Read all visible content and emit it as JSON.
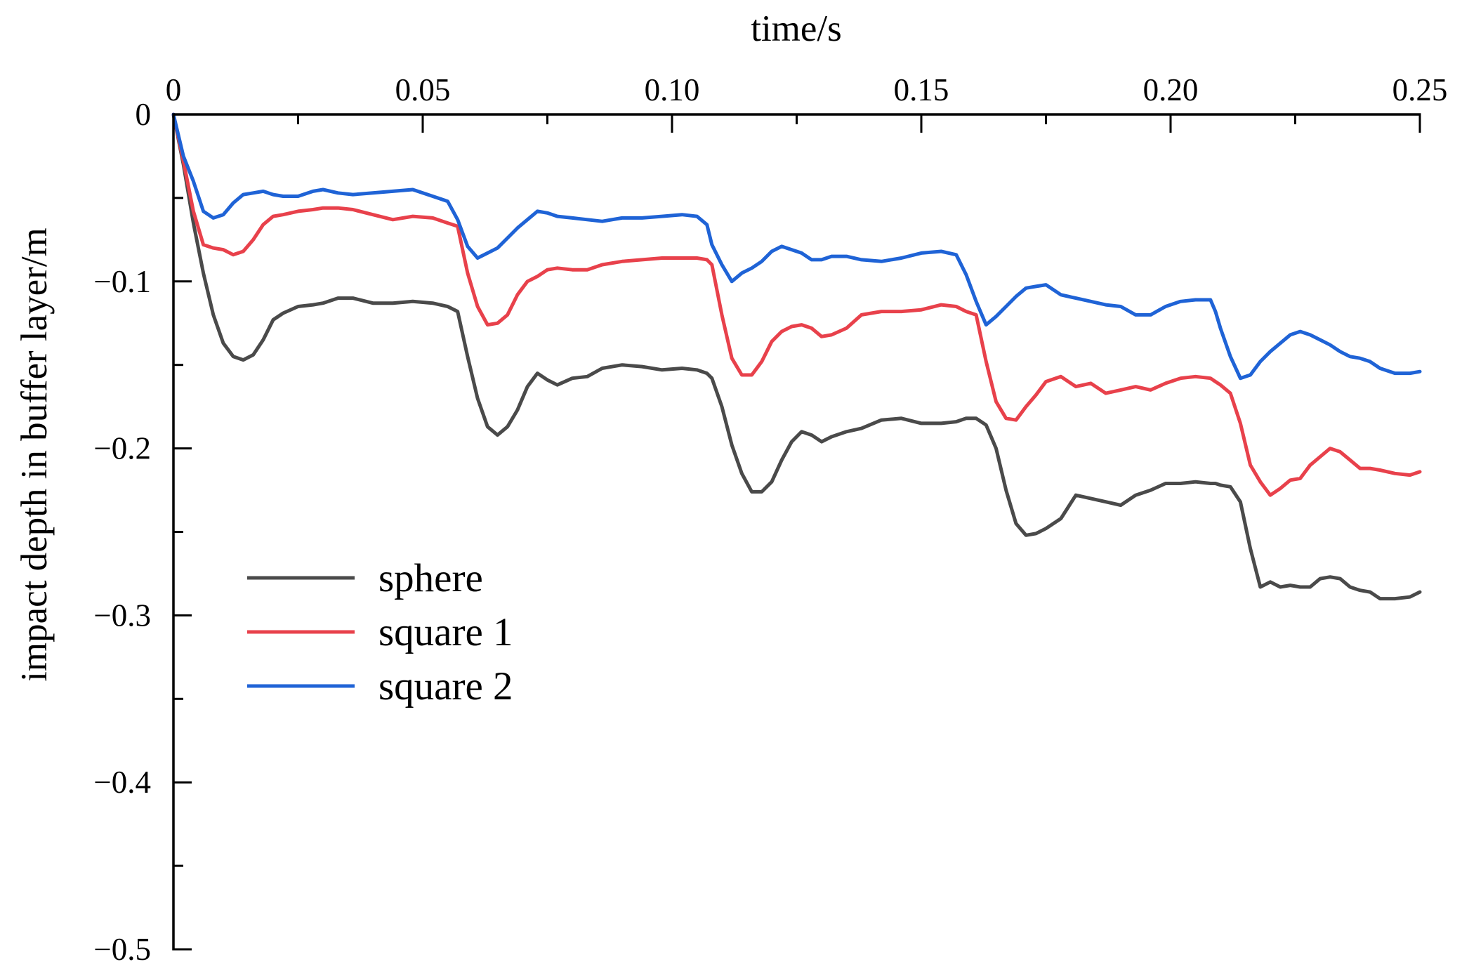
{
  "chart_data": {
    "type": "line",
    "title": "",
    "xlabel": "time/s",
    "ylabel": "impact depth in buffer layer/m",
    "x_axis_position": "top",
    "xlim": [
      0,
      0.25
    ],
    "ylim": [
      -0.5,
      0
    ],
    "x_ticks": [
      {
        "value": 0,
        "label": "0"
      },
      {
        "value": 0.05,
        "label": "0.05"
      },
      {
        "value": 0.1,
        "label": "0.10"
      },
      {
        "value": 0.15,
        "label": "0.15"
      },
      {
        "value": 0.2,
        "label": "0.20"
      },
      {
        "value": 0.25,
        "label": "0.25"
      }
    ],
    "x_minor_ticks": [
      0.025,
      0.075,
      0.125,
      0.175,
      0.225
    ],
    "y_ticks": [
      {
        "value": 0,
        "label": "0"
      },
      {
        "value": -0.1,
        "label": "−0.1"
      },
      {
        "value": -0.2,
        "label": "−0.2"
      },
      {
        "value": -0.3,
        "label": "−0.3"
      },
      {
        "value": -0.4,
        "label": "−0.4"
      },
      {
        "value": -0.5,
        "label": "−0.5"
      }
    ],
    "y_minor_ticks": [
      -0.05,
      -0.15,
      -0.25,
      -0.35,
      -0.45
    ],
    "grid": false,
    "legend_position": "lower-left",
    "series": [
      {
        "name": "sphere",
        "color": "#4a4a4a",
        "x": [
          0,
          0.002,
          0.004,
          0.006,
          0.008,
          0.01,
          0.012,
          0.014,
          0.016,
          0.018,
          0.02,
          0.022,
          0.025,
          0.028,
          0.03,
          0.033,
          0.036,
          0.04,
          0.044,
          0.048,
          0.052,
          0.055,
          0.057,
          0.059,
          0.061,
          0.063,
          0.065,
          0.067,
          0.069,
          0.071,
          0.073,
          0.075,
          0.077,
          0.08,
          0.083,
          0.086,
          0.09,
          0.094,
          0.098,
          0.102,
          0.105,
          0.107,
          0.108,
          0.11,
          0.112,
          0.114,
          0.116,
          0.118,
          0.12,
          0.122,
          0.124,
          0.126,
          0.128,
          0.13,
          0.132,
          0.135,
          0.138,
          0.142,
          0.146,
          0.15,
          0.154,
          0.157,
          0.159,
          0.161,
          0.163,
          0.165,
          0.167,
          0.169,
          0.171,
          0.173,
          0.175,
          0.178,
          0.181,
          0.184,
          0.187,
          0.19,
          0.193,
          0.196,
          0.199,
          0.202,
          0.205,
          0.208,
          0.209,
          0.21,
          0.212,
          0.214,
          0.216,
          0.218,
          0.22,
          0.222,
          0.224,
          0.226,
          0.228,
          0.23,
          0.232,
          0.234,
          0.236,
          0.238,
          0.24,
          0.242,
          0.245,
          0.248,
          0.25
        ],
        "values": [
          0,
          -0.03,
          -0.065,
          -0.095,
          -0.12,
          -0.137,
          -0.145,
          -0.147,
          -0.144,
          -0.135,
          -0.123,
          -0.119,
          -0.115,
          -0.114,
          -0.113,
          -0.11,
          -0.11,
          -0.113,
          -0.113,
          -0.112,
          -0.113,
          -0.115,
          -0.118,
          -0.145,
          -0.17,
          -0.187,
          -0.192,
          -0.187,
          -0.177,
          -0.163,
          -0.155,
          -0.159,
          -0.162,
          -0.158,
          -0.157,
          -0.152,
          -0.15,
          -0.151,
          -0.153,
          -0.152,
          -0.153,
          -0.155,
          -0.158,
          -0.175,
          -0.198,
          -0.215,
          -0.226,
          -0.226,
          -0.22,
          -0.207,
          -0.196,
          -0.19,
          -0.192,
          -0.196,
          -0.193,
          -0.19,
          -0.188,
          -0.183,
          -0.182,
          -0.185,
          -0.185,
          -0.184,
          -0.182,
          -0.182,
          -0.186,
          -0.2,
          -0.225,
          -0.245,
          -0.252,
          -0.251,
          -0.248,
          -0.242,
          -0.228,
          -0.23,
          -0.232,
          -0.234,
          -0.228,
          -0.225,
          -0.221,
          -0.221,
          -0.22,
          -0.221,
          -0.221,
          -0.222,
          -0.223,
          -0.232,
          -0.26,
          -0.283,
          -0.28,
          -0.283,
          -0.282,
          -0.283,
          -0.283,
          -0.278,
          -0.277,
          -0.278,
          -0.283,
          -0.285,
          -0.286,
          -0.29,
          -0.29,
          -0.289,
          -0.286
        ]
      },
      {
        "name": "square 1",
        "color": "#e8414b",
        "x": [
          0,
          0.002,
          0.004,
          0.006,
          0.008,
          0.01,
          0.012,
          0.014,
          0.016,
          0.018,
          0.02,
          0.022,
          0.025,
          0.028,
          0.03,
          0.033,
          0.036,
          0.04,
          0.044,
          0.048,
          0.052,
          0.055,
          0.057,
          0.059,
          0.061,
          0.063,
          0.065,
          0.067,
          0.069,
          0.071,
          0.073,
          0.075,
          0.077,
          0.08,
          0.083,
          0.086,
          0.09,
          0.094,
          0.098,
          0.102,
          0.105,
          0.107,
          0.108,
          0.11,
          0.112,
          0.114,
          0.116,
          0.118,
          0.12,
          0.122,
          0.124,
          0.126,
          0.128,
          0.13,
          0.132,
          0.135,
          0.138,
          0.142,
          0.146,
          0.15,
          0.154,
          0.157,
          0.159,
          0.161,
          0.163,
          0.165,
          0.167,
          0.169,
          0.171,
          0.173,
          0.175,
          0.178,
          0.181,
          0.184,
          0.187,
          0.19,
          0.193,
          0.196,
          0.199,
          0.202,
          0.205,
          0.208,
          0.209,
          0.21,
          0.212,
          0.214,
          0.216,
          0.218,
          0.22,
          0.222,
          0.224,
          0.226,
          0.228,
          0.23,
          0.232,
          0.234,
          0.236,
          0.238,
          0.24,
          0.242,
          0.245,
          0.248,
          0.25
        ],
        "values": [
          0,
          -0.028,
          -0.058,
          -0.078,
          -0.08,
          -0.081,
          -0.084,
          -0.082,
          -0.075,
          -0.066,
          -0.061,
          -0.06,
          -0.058,
          -0.057,
          -0.056,
          -0.056,
          -0.057,
          -0.06,
          -0.063,
          -0.061,
          -0.062,
          -0.065,
          -0.067,
          -0.095,
          -0.115,
          -0.126,
          -0.125,
          -0.12,
          -0.108,
          -0.1,
          -0.097,
          -0.093,
          -0.092,
          -0.093,
          -0.093,
          -0.09,
          -0.088,
          -0.087,
          -0.086,
          -0.086,
          -0.086,
          -0.087,
          -0.09,
          -0.12,
          -0.146,
          -0.156,
          -0.156,
          -0.148,
          -0.136,
          -0.13,
          -0.127,
          -0.126,
          -0.128,
          -0.133,
          -0.132,
          -0.128,
          -0.12,
          -0.118,
          -0.118,
          -0.117,
          -0.114,
          -0.115,
          -0.118,
          -0.12,
          -0.148,
          -0.172,
          -0.182,
          -0.183,
          -0.175,
          -0.168,
          -0.16,
          -0.157,
          -0.163,
          -0.161,
          -0.167,
          -0.165,
          -0.163,
          -0.165,
          -0.161,
          -0.158,
          -0.157,
          -0.158,
          -0.16,
          -0.162,
          -0.167,
          -0.185,
          -0.21,
          -0.22,
          -0.228,
          -0.224,
          -0.219,
          -0.218,
          -0.21,
          -0.205,
          -0.2,
          -0.202,
          -0.207,
          -0.212,
          -0.212,
          -0.213,
          -0.215,
          -0.216,
          -0.214
        ]
      },
      {
        "name": "square 2",
        "color": "#1f63d6",
        "x": [
          0,
          0.002,
          0.004,
          0.006,
          0.008,
          0.01,
          0.012,
          0.014,
          0.016,
          0.018,
          0.02,
          0.022,
          0.025,
          0.028,
          0.03,
          0.033,
          0.036,
          0.04,
          0.044,
          0.048,
          0.052,
          0.055,
          0.057,
          0.059,
          0.061,
          0.063,
          0.065,
          0.067,
          0.069,
          0.071,
          0.073,
          0.075,
          0.077,
          0.08,
          0.083,
          0.086,
          0.09,
          0.094,
          0.098,
          0.102,
          0.105,
          0.107,
          0.108,
          0.11,
          0.112,
          0.114,
          0.116,
          0.118,
          0.12,
          0.122,
          0.124,
          0.126,
          0.128,
          0.13,
          0.132,
          0.135,
          0.138,
          0.142,
          0.146,
          0.15,
          0.154,
          0.157,
          0.159,
          0.161,
          0.163,
          0.165,
          0.167,
          0.169,
          0.171,
          0.173,
          0.175,
          0.178,
          0.181,
          0.184,
          0.187,
          0.19,
          0.193,
          0.196,
          0.199,
          0.202,
          0.205,
          0.208,
          0.209,
          0.21,
          0.212,
          0.214,
          0.216,
          0.218,
          0.22,
          0.222,
          0.224,
          0.226,
          0.228,
          0.23,
          0.232,
          0.234,
          0.236,
          0.238,
          0.24,
          0.242,
          0.245,
          0.248,
          0.25
        ],
        "values": [
          0,
          -0.025,
          -0.04,
          -0.058,
          -0.062,
          -0.06,
          -0.053,
          -0.048,
          -0.047,
          -0.046,
          -0.048,
          -0.049,
          -0.049,
          -0.046,
          -0.045,
          -0.047,
          -0.048,
          -0.047,
          -0.046,
          -0.045,
          -0.049,
          -0.052,
          -0.063,
          -0.079,
          -0.086,
          -0.083,
          -0.08,
          -0.074,
          -0.068,
          -0.063,
          -0.058,
          -0.059,
          -0.061,
          -0.062,
          -0.063,
          -0.064,
          -0.062,
          -0.062,
          -0.061,
          -0.06,
          -0.061,
          -0.066,
          -0.078,
          -0.09,
          -0.1,
          -0.095,
          -0.092,
          -0.088,
          -0.082,
          -0.079,
          -0.081,
          -0.083,
          -0.087,
          -0.087,
          -0.085,
          -0.085,
          -0.087,
          -0.088,
          -0.086,
          -0.083,
          -0.082,
          -0.084,
          -0.096,
          -0.112,
          -0.126,
          -0.121,
          -0.115,
          -0.109,
          -0.104,
          -0.103,
          -0.102,
          -0.108,
          -0.11,
          -0.112,
          -0.114,
          -0.115,
          -0.12,
          -0.12,
          -0.115,
          -0.112,
          -0.111,
          -0.111,
          -0.118,
          -0.128,
          -0.145,
          -0.158,
          -0.156,
          -0.148,
          -0.142,
          -0.137,
          -0.132,
          -0.13,
          -0.132,
          -0.135,
          -0.138,
          -0.142,
          -0.145,
          -0.146,
          -0.148,
          -0.152,
          -0.155,
          -0.155,
          -0.154
        ]
      }
    ]
  }
}
